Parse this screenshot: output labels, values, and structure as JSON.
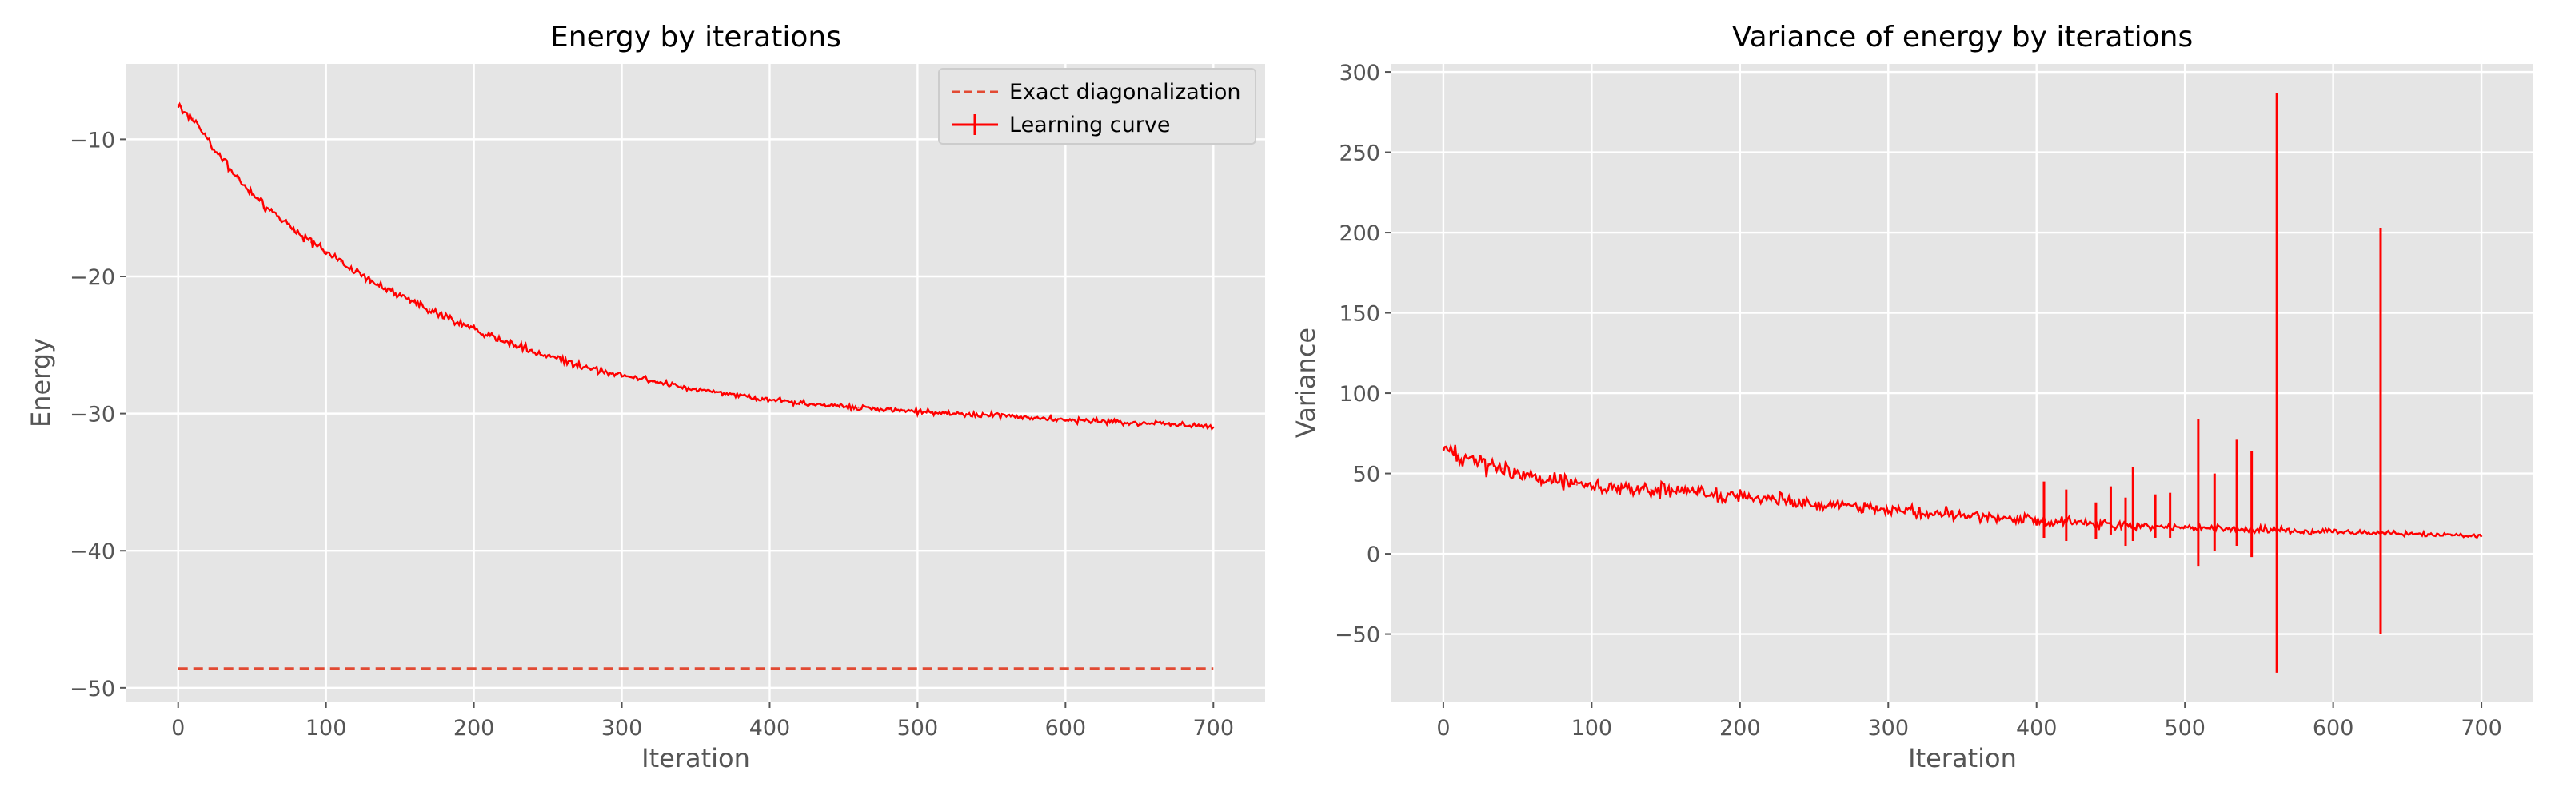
{
  "chart_data": [
    {
      "type": "line",
      "title": "Energy by iterations",
      "xlabel": "Iteration",
      "ylabel": "Energy",
      "xlim": [
        -35,
        735
      ],
      "ylim": [
        -51,
        -4.5
      ],
      "xticks": [
        0,
        100,
        200,
        300,
        400,
        500,
        600,
        700
      ],
      "yticks": [
        -10,
        -20,
        -30,
        -40,
        -50
      ],
      "grid": true,
      "legend": "top-right",
      "series": [
        {
          "name": "Exact diagonalization",
          "style": "dashed",
          "color": "#e24a33",
          "x": [
            0,
            700
          ],
          "y": [
            -48.6,
            -48.6
          ]
        },
        {
          "name": "Learning curve",
          "style": "solid-errorbar",
          "color": "#ff0000",
          "x": [
            0,
            10,
            20,
            30,
            40,
            50,
            60,
            70,
            80,
            90,
            100,
            110,
            120,
            130,
            140,
            150,
            160,
            170,
            180,
            190,
            200,
            210,
            220,
            230,
            240,
            250,
            260,
            270,
            280,
            290,
            300,
            310,
            320,
            330,
            340,
            350,
            360,
            370,
            380,
            390,
            400,
            410,
            420,
            430,
            440,
            450,
            460,
            470,
            480,
            490,
            500,
            510,
            520,
            530,
            540,
            550,
            560,
            570,
            580,
            590,
            600,
            610,
            620,
            630,
            640,
            650,
            660,
            670,
            680,
            690,
            700
          ],
          "y": [
            -7.5,
            -8.5,
            -10.0,
            -11.5,
            -12.8,
            -14.0,
            -15.0,
            -15.9,
            -16.7,
            -17.5,
            -18.2,
            -18.9,
            -19.6,
            -20.2,
            -20.8,
            -21.4,
            -21.9,
            -22.4,
            -22.9,
            -23.4,
            -23.8,
            -24.3,
            -24.7,
            -25.1,
            -25.5,
            -25.8,
            -26.1,
            -26.4,
            -26.7,
            -27.0,
            -27.2,
            -27.4,
            -27.6,
            -27.8,
            -28.0,
            -28.2,
            -28.4,
            -28.6,
            -28.7,
            -28.9,
            -29.0,
            -29.1,
            -29.2,
            -29.3,
            -29.4,
            -29.5,
            -29.55,
            -29.6,
            -29.7,
            -29.8,
            -29.85,
            -29.9,
            -30.0,
            -30.05,
            -30.1,
            -30.15,
            -30.2,
            -30.3,
            -30.35,
            -30.4,
            -30.45,
            -30.5,
            -30.55,
            -30.6,
            -30.65,
            -30.7,
            -30.75,
            -30.8,
            -30.85,
            -30.9,
            -31.0
          ]
        }
      ]
    },
    {
      "type": "line",
      "title": "Variance of energy by iterations",
      "xlabel": "Iteration",
      "ylabel": "Variance",
      "xlim": [
        -35,
        735
      ],
      "ylim": [
        -92,
        305
      ],
      "xticks": [
        0,
        100,
        200,
        300,
        400,
        500,
        600,
        700
      ],
      "yticks": [
        300,
        250,
        200,
        150,
        100,
        50,
        0,
        -50
      ],
      "grid": true,
      "series": [
        {
          "color": "#ff0000",
          "x": [
            0,
            10,
            20,
            30,
            40,
            50,
            60,
            70,
            80,
            90,
            100,
            120,
            140,
            160,
            180,
            200,
            220,
            240,
            260,
            280,
            300,
            320,
            340,
            360,
            380,
            400,
            420,
            440,
            460,
            480,
            500,
            520,
            540,
            560,
            580,
            600,
            620,
            640,
            660,
            680,
            700
          ],
          "y": [
            65,
            62,
            60,
            56,
            53,
            50,
            48,
            46,
            44,
            43,
            42,
            41,
            40,
            39,
            37,
            36,
            34,
            32,
            30,
            29,
            27,
            26,
            25,
            24,
            22,
            21,
            20,
            19,
            18,
            17,
            16,
            16,
            15,
            15,
            14,
            14,
            13,
            13,
            12,
            12,
            11
          ]
        }
      ],
      "spikes": [
        {
          "x": 405,
          "low": 10,
          "high": 45
        },
        {
          "x": 420,
          "low": 8,
          "high": 40
        },
        {
          "x": 440,
          "low": 9,
          "high": 32
        },
        {
          "x": 450,
          "low": 12,
          "high": 42
        },
        {
          "x": 460,
          "low": 5,
          "high": 35
        },
        {
          "x": 465,
          "low": 8,
          "high": 54
        },
        {
          "x": 480,
          "low": 10,
          "high": 37
        },
        {
          "x": 490,
          "low": 10,
          "high": 38
        },
        {
          "x": 509,
          "low": -8,
          "high": 84
        },
        {
          "x": 520,
          "low": 2,
          "high": 50
        },
        {
          "x": 535,
          "low": 5,
          "high": 71
        },
        {
          "x": 545,
          "low": -2,
          "high": 64
        },
        {
          "x": 562,
          "low": -74,
          "high": 287
        },
        {
          "x": 632,
          "low": -50,
          "high": 203
        }
      ]
    }
  ]
}
